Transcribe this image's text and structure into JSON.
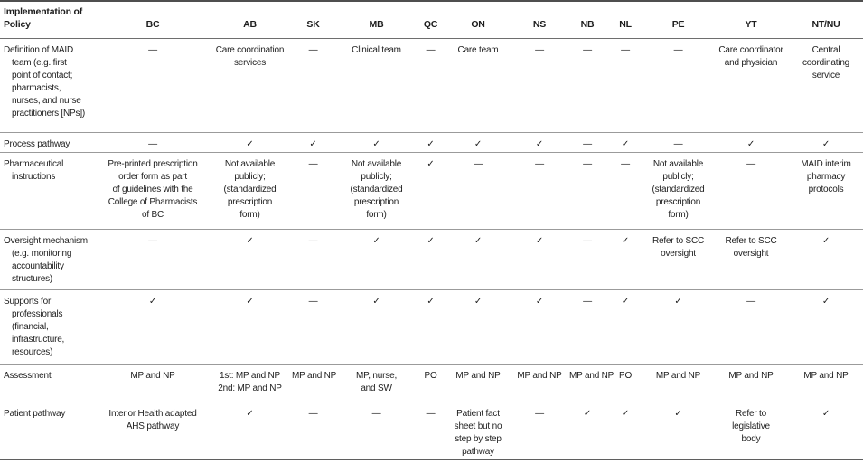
{
  "page": {
    "background": "#ffffff",
    "text_color": "#1d1d1d",
    "rule_color_heavy": "#4f4f4f",
    "rule_color_light": "#9b9b9b"
  },
  "symbols": {
    "check": "✓",
    "dash": "—"
  },
  "table": {
    "corner_label": "Implementation of\nPolicy",
    "columns": [
      "BC",
      "AB",
      "SK",
      "MB",
      "QC",
      "ON",
      "NS",
      "NB",
      "NL",
      "PE",
      "YT",
      "NT/NU"
    ],
    "rows": [
      {
        "label": "Definition of MAID\nteam (e.g. first\npoint of contact;\npharmacists,\nnurses, and nurse\npractitioners [NPs])",
        "cells": [
          "—",
          "Care coordination\nservices",
          "—",
          "Clinical team",
          "—",
          "Care team",
          "—",
          "—",
          "—",
          "—",
          "Care coordinator\nand physician",
          "Central\ncoordinating\nservice"
        ]
      },
      {
        "label": "Process pathway",
        "cells": [
          "—",
          "✓",
          "✓",
          "✓",
          "✓",
          "✓",
          "✓",
          "—",
          "✓",
          "—",
          "✓",
          "✓"
        ]
      },
      {
        "label": "Pharmaceutical\ninstructions",
        "cells": [
          "Pre-printed prescription\norder form as part\nof guidelines with the\nCollege of Pharmacists\nof BC",
          "Not available\npublicly;\n(standardized\nprescription\nform)",
          "—",
          "Not available\npublicly;\n(standardized\nprescription\nform)",
          "✓",
          "—",
          "—",
          "—",
          "—",
          "Not available\npublicly;\n(standardized\nprescription\nform)",
          "—",
          "MAID interim\npharmacy\nprotocols"
        ]
      },
      {
        "label": "Oversight mechanism\n(e.g. monitoring\naccountability\nstructures)",
        "cells": [
          "—",
          "✓",
          "—",
          "✓",
          "✓",
          "✓",
          "✓",
          "—",
          "✓",
          "Refer to SCC\noversight",
          "Refer to SCC\noversight",
          "✓"
        ]
      },
      {
        "label": "Supports for\nprofessionals\n(financial,\ninfrastructure,\nresources)",
        "cells": [
          "✓",
          "✓",
          "—",
          "✓",
          "✓",
          "✓",
          "✓",
          "—",
          "✓",
          "✓",
          "—",
          "✓"
        ]
      },
      {
        "label": "Assessment",
        "cells": [
          "MP and NP",
          "1st: MP and NP\n2nd: MP and NP",
          "MP and NP",
          "MP, nurse,\nand SW",
          "PO",
          "MP and NP",
          "MP and NP",
          "MP and NP",
          "PO",
          "MP and NP",
          "MP and NP",
          "MP and NP"
        ]
      },
      {
        "label": "Patient pathway",
        "cells": [
          "Interior Health adapted\nAHS pathway",
          "✓",
          "—",
          "—",
          "—",
          "Patient fact\nsheet but no\nstep by step\npathway",
          "—",
          "✓",
          "✓",
          "✓",
          "Refer to\nlegislative\nbody",
          "✓"
        ]
      }
    ]
  }
}
